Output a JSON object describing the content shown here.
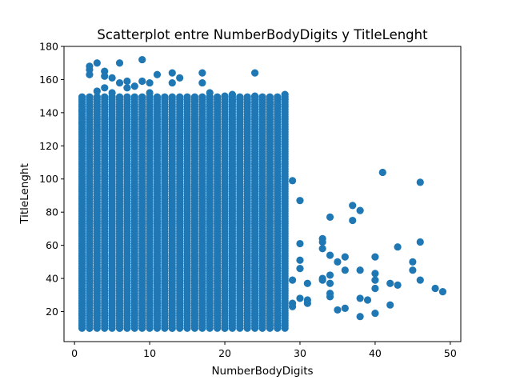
{
  "chart_data": {
    "type": "scatter",
    "title": "Scatterplot entre NumberBodyDigits y TitleLenght",
    "xlabel": "NumberBodyDigits",
    "ylabel": "TitleLenght",
    "xlim": [
      -1.4,
      51.4
    ],
    "ylim": [
      1.9,
      180
    ],
    "xticks": [
      0,
      10,
      20,
      30,
      40,
      50
    ],
    "yticks": [
      20,
      40,
      60,
      80,
      100,
      120,
      140,
      160,
      180
    ],
    "grid": false,
    "legend": "none",
    "marker_color": "#1f77b4",
    "dense_region": {
      "x_range": [
        1,
        28
      ],
      "y_range": [
        10,
        150
      ],
      "note": "points densely cover every integer x from 1 to 28 over this y range"
    },
    "series": [
      {
        "points": [
          {
            "x": 1,
            "y": 141
          },
          {
            "x": 1,
            "y": 134
          },
          {
            "x": 2,
            "y": 168
          },
          {
            "x": 2,
            "y": 166
          },
          {
            "x": 2,
            "y": 163
          },
          {
            "x": 3,
            "y": 170
          },
          {
            "x": 3,
            "y": 153
          },
          {
            "x": 4,
            "y": 165
          },
          {
            "x": 4,
            "y": 162
          },
          {
            "x": 4,
            "y": 155
          },
          {
            "x": 5,
            "y": 161
          },
          {
            "x": 5,
            "y": 152
          },
          {
            "x": 6,
            "y": 170
          },
          {
            "x": 6,
            "y": 158
          },
          {
            "x": 7,
            "y": 159
          },
          {
            "x": 7,
            "y": 155
          },
          {
            "x": 8,
            "y": 156
          },
          {
            "x": 9,
            "y": 172
          },
          {
            "x": 9,
            "y": 159
          },
          {
            "x": 10,
            "y": 158
          },
          {
            "x": 10,
            "y": 152
          },
          {
            "x": 11,
            "y": 163
          },
          {
            "x": 12,
            "y": 149
          },
          {
            "x": 13,
            "y": 164
          },
          {
            "x": 13,
            "y": 158
          },
          {
            "x": 14,
            "y": 161
          },
          {
            "x": 15,
            "y": 148
          },
          {
            "x": 16,
            "y": 147
          },
          {
            "x": 17,
            "y": 164
          },
          {
            "x": 17,
            "y": 158
          },
          {
            "x": 18,
            "y": 152
          },
          {
            "x": 19,
            "y": 146
          },
          {
            "x": 20,
            "y": 150
          },
          {
            "x": 21,
            "y": 151
          },
          {
            "x": 21,
            "y": 147
          },
          {
            "x": 22,
            "y": 148
          },
          {
            "x": 23,
            "y": 146
          },
          {
            "x": 24,
            "y": 164
          },
          {
            "x": 24,
            "y": 150
          },
          {
            "x": 25,
            "y": 148
          },
          {
            "x": 26,
            "y": 146
          },
          {
            "x": 27,
            "y": 145
          },
          {
            "x": 28,
            "y": 151
          },
          {
            "x": 28,
            "y": 148
          },
          {
            "x": 2,
            "y": 10
          },
          {
            "x": 6,
            "y": 10
          },
          {
            "x": 13,
            "y": 10
          },
          {
            "x": 20,
            "y": 10
          },
          {
            "x": 27,
            "y": 12
          },
          {
            "x": 29,
            "y": 99
          },
          {
            "x": 29,
            "y": 39
          },
          {
            "x": 29,
            "y": 25
          },
          {
            "x": 29,
            "y": 23
          },
          {
            "x": 30,
            "y": 87
          },
          {
            "x": 30,
            "y": 61
          },
          {
            "x": 30,
            "y": 51
          },
          {
            "x": 30,
            "y": 46
          },
          {
            "x": 30,
            "y": 28
          },
          {
            "x": 31,
            "y": 37
          },
          {
            "x": 31,
            "y": 27
          },
          {
            "x": 31,
            "y": 25
          },
          {
            "x": 33,
            "y": 64
          },
          {
            "x": 33,
            "y": 62
          },
          {
            "x": 33,
            "y": 58
          },
          {
            "x": 33,
            "y": 40
          },
          {
            "x": 33,
            "y": 39
          },
          {
            "x": 34,
            "y": 77
          },
          {
            "x": 34,
            "y": 54
          },
          {
            "x": 34,
            "y": 42
          },
          {
            "x": 34,
            "y": 37
          },
          {
            "x": 34,
            "y": 31
          },
          {
            "x": 34,
            "y": 29
          },
          {
            "x": 35,
            "y": 50
          },
          {
            "x": 35,
            "y": 21
          },
          {
            "x": 36,
            "y": 53
          },
          {
            "x": 36,
            "y": 45
          },
          {
            "x": 36,
            "y": 22
          },
          {
            "x": 37,
            "y": 84
          },
          {
            "x": 37,
            "y": 75
          },
          {
            "x": 38,
            "y": 81
          },
          {
            "x": 38,
            "y": 45
          },
          {
            "x": 38,
            "y": 28
          },
          {
            "x": 38,
            "y": 17
          },
          {
            "x": 39,
            "y": 27
          },
          {
            "x": 40,
            "y": 53
          },
          {
            "x": 40,
            "y": 43
          },
          {
            "x": 40,
            "y": 39
          },
          {
            "x": 40,
            "y": 34
          },
          {
            "x": 40,
            "y": 19
          },
          {
            "x": 41,
            "y": 104
          },
          {
            "x": 42,
            "y": 37
          },
          {
            "x": 42,
            "y": 24
          },
          {
            "x": 43,
            "y": 59
          },
          {
            "x": 43,
            "y": 36
          },
          {
            "x": 45,
            "y": 50
          },
          {
            "x": 45,
            "y": 45
          },
          {
            "x": 46,
            "y": 98
          },
          {
            "x": 46,
            "y": 62
          },
          {
            "x": 46,
            "y": 39
          },
          {
            "x": 48,
            "y": 34
          },
          {
            "x": 49,
            "y": 32
          }
        ]
      }
    ]
  }
}
